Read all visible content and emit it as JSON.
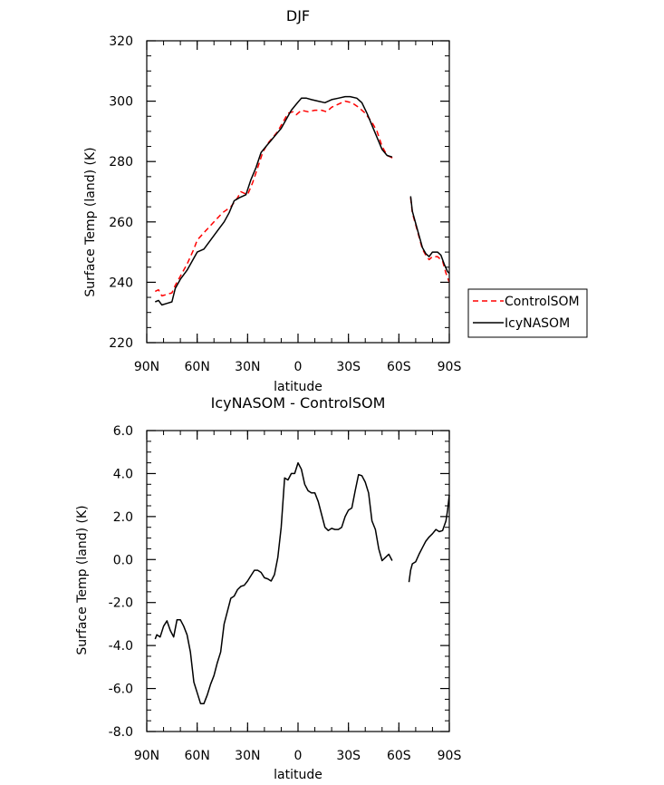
{
  "chart_data": [
    {
      "type": "line",
      "title": "DJF",
      "xlabel": "latitude",
      "ylabel": "Surface Temp (land) (K)",
      "xticks": [
        "90N",
        "60N",
        "30N",
        "0",
        "30S",
        "60S",
        "90S"
      ],
      "xlim": [
        90,
        -90
      ],
      "ylim": [
        220,
        320
      ],
      "yticks": [
        "220",
        "240",
        "260",
        "280",
        "300",
        "320"
      ],
      "legend_position": "right",
      "series": [
        {
          "name": "ControlSOM",
          "color": "#ff0000",
          "dash": "dashed",
          "segments": [
            [
              [
                85,
                237
              ],
              [
                83,
                237.5
              ],
              [
                81,
                235.5
              ],
              [
                78,
                236
              ],
              [
                75,
                236.5
              ],
              [
                73,
                239
              ],
              [
                70,
                242
              ],
              [
                66,
                246
              ],
              [
                62,
                251
              ],
              [
                60,
                254
              ],
              [
                55,
                257
              ],
              [
                50,
                260
              ],
              [
                45,
                263
              ],
              [
                40,
                265
              ],
              [
                36,
                268
              ],
              [
                34,
                270
              ],
              [
                30,
                269
              ],
              [
                27,
                273
              ],
              [
                24,
                278
              ],
              [
                21,
                283
              ],
              [
                18,
                286
              ],
              [
                15,
                288
              ],
              [
                12,
                290
              ],
              [
                9,
                293
              ],
              [
                6,
                296
              ],
              [
                3,
                296.5
              ],
              [
                1,
                295.5
              ],
              [
                -2,
                297
              ],
              [
                -6,
                296.5
              ],
              [
                -10,
                297
              ],
              [
                -14,
                297
              ],
              [
                -17,
                296.5
              ],
              [
                -20,
                298
              ],
              [
                -24,
                299
              ],
              [
                -28,
                300
              ],
              [
                -32,
                299.5
              ],
              [
                -36,
                298
              ],
              [
                -40,
                296
              ],
              [
                -44,
                293
              ],
              [
                -47,
                290
              ],
              [
                -50,
                285
              ],
              [
                -53,
                282
              ],
              [
                -55,
                281.5
              ],
              [
                -57,
                281
              ]
            ],
            [
              [
                -67,
                268
              ],
              [
                -68,
                263
              ],
              [
                -70,
                259
              ],
              [
                -72,
                255
              ],
              [
                -74,
                251
              ],
              [
                -76,
                249
              ],
              [
                -78,
                247.5
              ],
              [
                -80,
                248.5
              ],
              [
                -83,
                248.5
              ],
              [
                -86,
                247
              ],
              [
                -88,
                243
              ],
              [
                -90,
                240
              ]
            ]
          ]
        },
        {
          "name": "IcyNASOM",
          "color": "#000000",
          "dash": "solid",
          "segments": [
            [
              [
                85,
                233.5
              ],
              [
                83,
                234
              ],
              [
                81,
                232.5
              ],
              [
                78,
                233
              ],
              [
                75,
                233.5
              ],
              [
                73,
                238
              ],
              [
                70,
                241
              ],
              [
                66,
                244
              ],
              [
                62,
                248
              ],
              [
                60,
                250
              ],
              [
                56,
                251
              ],
              [
                52,
                254
              ],
              [
                48,
                257
              ],
              [
                44,
                260
              ],
              [
                41,
                263
              ],
              [
                38,
                267
              ],
              [
                35,
                268
              ],
              [
                31,
                269
              ],
              [
                28,
                274
              ],
              [
                25,
                278
              ],
              [
                22,
                283
              ],
              [
                19,
                285
              ],
              [
                16,
                287
              ],
              [
                13,
                289
              ],
              [
                10,
                291
              ],
              [
                7,
                294
              ],
              [
                4,
                297
              ],
              [
                1,
                299
              ],
              [
                -2,
                301
              ],
              [
                -5,
                301
              ],
              [
                -8,
                300.5
              ],
              [
                -12,
                300
              ],
              [
                -16,
                299.5
              ],
              [
                -20,
                300.5
              ],
              [
                -24,
                301
              ],
              [
                -28,
                301.5
              ],
              [
                -31,
                301.5
              ],
              [
                -35,
                301
              ],
              [
                -38,
                299.5
              ],
              [
                -41,
                296
              ],
              [
                -44,
                292
              ],
              [
                -47,
                288
              ],
              [
                -50,
                284
              ],
              [
                -53,
                282
              ],
              [
                -56,
                281.5
              ]
            ],
            [
              [
                -67,
                268.5
              ],
              [
                -68,
                263.5
              ],
              [
                -70,
                259.5
              ],
              [
                -72,
                255.5
              ],
              [
                -74,
                251.5
              ],
              [
                -76,
                249.5
              ],
              [
                -78,
                248.5
              ],
              [
                -80,
                250
              ],
              [
                -83,
                250
              ],
              [
                -85,
                249
              ],
              [
                -87,
                246
              ],
              [
                -89,
                243.5
              ],
              [
                -90,
                243
              ]
            ]
          ]
        }
      ]
    },
    {
      "type": "line",
      "title": "IcyNASOM - ControlSOM",
      "xlabel": "latitude",
      "ylabel": "Surface Temp (land) (K)",
      "xticks": [
        "90N",
        "60N",
        "30N",
        "0",
        "30S",
        "60S",
        "90S"
      ],
      "xlim": [
        90,
        -90
      ],
      "ylim": [
        -8,
        6
      ],
      "yticks": [
        "-8.0",
        "-6.0",
        "-4.0",
        "-2.0",
        "0.0",
        "2.0",
        "4.0",
        "6.0"
      ],
      "series": [
        {
          "color": "#000000",
          "dash": "solid",
          "segments": [
            [
              [
                85,
                -3.7
              ],
              [
                84,
                -3.5
              ],
              [
                82,
                -3.6
              ],
              [
                80,
                -3.1
              ],
              [
                78,
                -2.85
              ],
              [
                76,
                -3.3
              ],
              [
                74,
                -3.6
              ],
              [
                72,
                -2.8
              ],
              [
                70,
                -2.8
              ],
              [
                68,
                -3.1
              ],
              [
                66,
                -3.5
              ],
              [
                64,
                -4.3
              ],
              [
                62,
                -5.7
              ],
              [
                60,
                -6.2
              ],
              [
                58,
                -6.7
              ],
              [
                56,
                -6.7
              ],
              [
                54,
                -6.3
              ],
              [
                52,
                -5.8
              ],
              [
                50,
                -5.4
              ],
              [
                48,
                -4.8
              ],
              [
                46,
                -4.3
              ],
              [
                44,
                -3.0
              ],
              [
                42,
                -2.4
              ],
              [
                40,
                -1.8
              ],
              [
                38,
                -1.7
              ],
              [
                36,
                -1.4
              ],
              [
                34,
                -1.25
              ],
              [
                32,
                -1.2
              ],
              [
                30,
                -1.0
              ],
              [
                28,
                -0.75
              ],
              [
                26,
                -0.5
              ],
              [
                24,
                -0.5
              ],
              [
                22,
                -0.6
              ],
              [
                20,
                -0.85
              ],
              [
                18,
                -0.9
              ],
              [
                16,
                -1.0
              ],
              [
                14,
                -0.7
              ],
              [
                12,
                0.1
              ],
              [
                10,
                1.5
              ],
              [
                8,
                3.8
              ],
              [
                6,
                3.7
              ],
              [
                4,
                4.0
              ],
              [
                2,
                4.0
              ],
              [
                0,
                4.5
              ],
              [
                -2,
                4.2
              ],
              [
                -4,
                3.5
              ],
              [
                -6,
                3.2
              ],
              [
                -8,
                3.1
              ],
              [
                -10,
                3.1
              ],
              [
                -12,
                2.7
              ],
              [
                -14,
                2.1
              ],
              [
                -16,
                1.5
              ],
              [
                -18,
                1.35
              ],
              [
                -20,
                1.45
              ],
              [
                -22,
                1.4
              ],
              [
                -24,
                1.4
              ],
              [
                -26,
                1.5
              ],
              [
                -28,
                2.0
              ],
              [
                -30,
                2.3
              ],
              [
                -32,
                2.4
              ],
              [
                -34,
                3.2
              ],
              [
                -36,
                3.95
              ],
              [
                -38,
                3.9
              ],
              [
                -40,
                3.6
              ],
              [
                -42,
                3.1
              ],
              [
                -44,
                1.8
              ],
              [
                -46,
                1.4
              ],
              [
                -48,
                0.5
              ],
              [
                -50,
                -0.05
              ],
              [
                -52,
                0.1
              ],
              [
                -54,
                0.25
              ],
              [
                -56,
                -0.05
              ]
            ],
            [
              [
                -66,
                -1.05
              ],
              [
                -67,
                -0.5
              ],
              [
                -68,
                -0.2
              ],
              [
                -70,
                -0.1
              ],
              [
                -72,
                0.25
              ],
              [
                -74,
                0.55
              ],
              [
                -76,
                0.85
              ],
              [
                -78,
                1.05
              ],
              [
                -80,
                1.2
              ],
              [
                -82,
                1.4
              ],
              [
                -84,
                1.3
              ],
              [
                -86,
                1.35
              ],
              [
                -88,
                1.8
              ],
              [
                -89,
                2.3
              ],
              [
                -90,
                3.0
              ]
            ]
          ]
        }
      ]
    }
  ]
}
